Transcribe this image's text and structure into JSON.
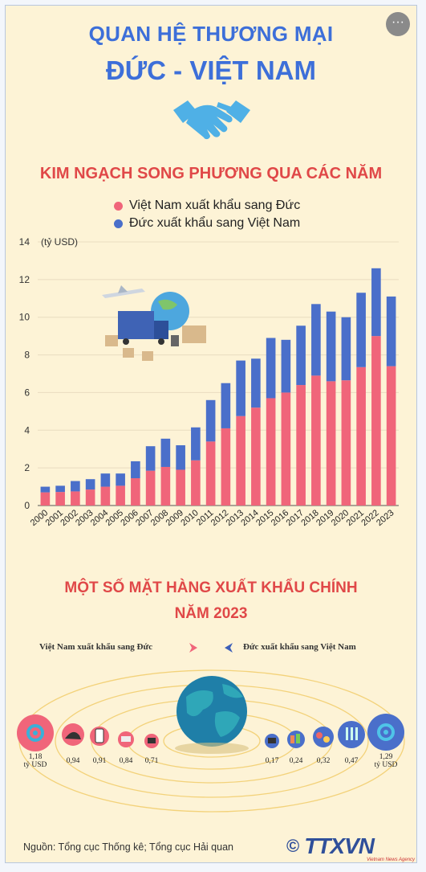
{
  "header": {
    "title_line1": "QUAN HỆ THƯƠNG MẠI",
    "title_line2": "ĐỨC - VIỆT NAM",
    "more_label": "···"
  },
  "section1": {
    "title": "KIM NGẠCH SONG PHƯƠNG QUA CÁC NĂM",
    "legend_vn": "Việt Nam xuất khẩu sang Đức",
    "legend_de": "Đức xuất khẩu sang Việt Nam"
  },
  "colors": {
    "vn": "#f0657a",
    "de": "#4a6fca",
    "title_blue": "#3d6fd9",
    "title_red": "#e04848",
    "bg": "#fdf3d6"
  },
  "chart_data": {
    "type": "bar",
    "stacked": true,
    "ylabel": "(tỷ USD)",
    "ylim": [
      0,
      14
    ],
    "yticks": [
      0,
      2,
      4,
      6,
      8,
      10,
      12,
      14
    ],
    "grid": true,
    "legend": "top",
    "categories": [
      "2000",
      "2001",
      "2002",
      "2003",
      "2004",
      "2005",
      "2006",
      "2007",
      "2008",
      "2009",
      "2010",
      "2011",
      "2012",
      "2013",
      "2014",
      "2015",
      "2016",
      "2017",
      "2018",
      "2019",
      "2020",
      "2021",
      "2022",
      "2023"
    ],
    "series": [
      {
        "name": "Việt Nam xuất khẩu sang Đức",
        "values": [
          0.7,
          0.72,
          0.75,
          0.85,
          1.0,
          1.05,
          1.45,
          1.85,
          2.05,
          1.9,
          2.4,
          3.4,
          4.1,
          4.75,
          5.2,
          5.7,
          6.0,
          6.4,
          6.9,
          6.6,
          6.65,
          7.35,
          9.0,
          7.4
        ]
      },
      {
        "name": "Đức xuất khẩu sang Việt Nam",
        "values": [
          0.3,
          0.33,
          0.55,
          0.55,
          0.7,
          0.65,
          0.9,
          1.3,
          1.5,
          1.3,
          1.75,
          2.2,
          2.4,
          2.95,
          2.6,
          3.2,
          2.8,
          3.15,
          3.8,
          3.7,
          3.35,
          3.95,
          3.6,
          3.7
        ]
      }
    ]
  },
  "section2": {
    "title_line1": "MỘT SỐ MẶT HÀNG XUẤT KHẨU CHÍNH",
    "title_line2": "NĂM 2023",
    "legend_vn": "Việt Nam xuất khẩu sang Đức",
    "legend_de": "Đức xuất khẩu sang Việt Nam",
    "vn_items": [
      {
        "value": "1,18",
        "unit": "tỷ USD",
        "icon": "gear-icon"
      },
      {
        "value": "0,94",
        "icon": "shoe-icon"
      },
      {
        "value": "0,91",
        "icon": "phone-icon"
      },
      {
        "value": "0,84",
        "icon": "sewing-machine-icon"
      },
      {
        "value": "0,71",
        "icon": "computer-icon"
      }
    ],
    "de_items": [
      {
        "value": "0,17",
        "icon": "computer-icon"
      },
      {
        "value": "0,24",
        "icon": "chemical-icon"
      },
      {
        "value": "0,32",
        "icon": "pills-icon"
      },
      {
        "value": "0,47",
        "icon": "lab-tubes-icon"
      },
      {
        "value": "1,29",
        "unit": "tỷ USD",
        "icon": "gear-icon"
      }
    ]
  },
  "footer": {
    "source": "Nguồn: Tổng cục Thống kê; Tổng cục Hải quan",
    "copyright": "©",
    "brand": "TTXVN",
    "brand_sub": "Vietnam News Agency"
  }
}
